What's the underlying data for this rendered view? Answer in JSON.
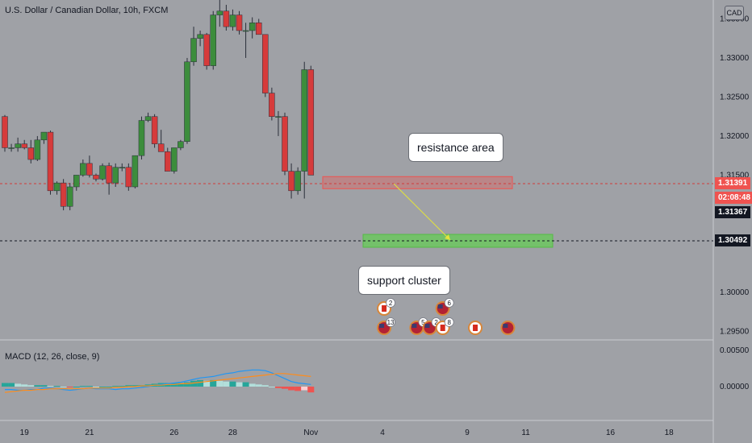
{
  "header": {
    "title": "U.S. Dollar / Canadian Dollar, 10h, FXCM",
    "currency": "CAD"
  },
  "macd": {
    "title": "MACD (12, 26, close, 9)"
  },
  "price_axis": {
    "ticks": [
      {
        "label": "1.33500",
        "v": 1.335
      },
      {
        "label": "1.33000",
        "v": 1.33
      },
      {
        "label": "1.32500",
        "v": 1.325
      },
      {
        "label": "1.32000",
        "v": 1.32
      },
      {
        "label": "1.31500",
        "v": 1.315
      },
      {
        "label": "1.30000",
        "v": 1.3
      },
      {
        "label": "1.29500",
        "v": 1.295
      }
    ],
    "macd_ticks": [
      {
        "label": "0.00500",
        "v": 0.005
      },
      {
        "label": "0.00000",
        "v": 0.0
      }
    ]
  },
  "time_axis": {
    "ticks": [
      {
        "label": "19",
        "i": 3
      },
      {
        "label": "21",
        "i": 13
      },
      {
        "label": "26",
        "i": 26
      },
      {
        "label": "28",
        "i": 35
      },
      {
        "label": "Nov",
        "i": 47
      },
      {
        "label": "4",
        "i": 58
      },
      {
        "label": "9",
        "i": 71
      },
      {
        "label": "11",
        "i": 80
      },
      {
        "label": "16",
        "i": 93
      },
      {
        "label": "18",
        "i": 102
      }
    ]
  },
  "price_tags": {
    "current": {
      "label": "1.31391",
      "color": "#ef5350"
    },
    "countdown": {
      "label": "02:08:48",
      "color": "#ef5350"
    },
    "open": {
      "label": "1.31367",
      "color": "#131722"
    },
    "support": {
      "label": "1.30492",
      "color": "#131722"
    }
  },
  "annotations": {
    "resistance": "resistance area",
    "support": "support cluster"
  },
  "colors": {
    "up": "#26a69a",
    "down": "#ef5350",
    "candle_up": "#3c8d3c",
    "candle_down": "#d63b3b",
    "bg": "#9fa1a6"
  },
  "events": [
    {
      "flag": "ca",
      "count": "2",
      "i": 58,
      "row": 0
    },
    {
      "flag": "us",
      "count": "13",
      "i": 58,
      "row": 1
    },
    {
      "flag": "us",
      "count": "5",
      "i": 63,
      "row": 1
    },
    {
      "flag": "us",
      "count": "2",
      "i": 65,
      "row": 1
    },
    {
      "flag": "us",
      "count": "6",
      "i": 67,
      "row": 0
    },
    {
      "flag": "ca",
      "count": "8",
      "i": 67,
      "row": 1
    },
    {
      "flag": "ca",
      "count": "",
      "i": 72,
      "row": 1
    },
    {
      "flag": "us",
      "count": "",
      "i": 77,
      "row": 1
    }
  ],
  "chart_data": {
    "type": "candlestick",
    "interval": "10h",
    "candles": [
      [
        1.3225,
        1.3227,
        1.318,
        1.3185
      ],
      [
        1.3185,
        1.319,
        1.318,
        1.3185
      ],
      [
        1.3185,
        1.3198,
        1.318,
        1.319
      ],
      [
        1.319,
        1.3195,
        1.3183,
        1.3185
      ],
      [
        1.3185,
        1.3195,
        1.3165,
        1.317
      ],
      [
        1.317,
        1.32,
        1.3168,
        1.3195
      ],
      [
        1.3195,
        1.3205,
        1.319,
        1.3205
      ],
      [
        1.3205,
        1.3207,
        1.3125,
        1.313
      ],
      [
        1.313,
        1.3142,
        1.3125,
        1.314
      ],
      [
        1.314,
        1.3145,
        1.3105,
        1.311
      ],
      [
        1.311,
        1.314,
        1.3105,
        1.3135
      ],
      [
        1.3135,
        1.315,
        1.313,
        1.315
      ],
      [
        1.315,
        1.317,
        1.3148,
        1.3165
      ],
      [
        1.3165,
        1.3175,
        1.3147,
        1.315
      ],
      [
        1.315,
        1.3152,
        1.3142,
        1.3145
      ],
      [
        1.3145,
        1.3165,
        1.3143,
        1.3162
      ],
      [
        1.3162,
        1.3166,
        1.3125,
        1.314
      ],
      [
        1.314,
        1.3165,
        1.3135,
        1.316
      ],
      [
        1.316,
        1.3165,
        1.3155,
        1.316
      ],
      [
        1.316,
        1.3165,
        1.313,
        1.3135
      ],
      [
        1.3135,
        1.3175,
        1.3133,
        1.3175
      ],
      [
        1.3175,
        1.3225,
        1.317,
        1.322
      ],
      [
        1.322,
        1.323,
        1.3218,
        1.3225
      ],
      [
        1.3225,
        1.3228,
        1.3185,
        1.319
      ],
      [
        1.319,
        1.3208,
        1.318,
        1.318
      ],
      [
        1.318,
        1.3185,
        1.3155,
        1.3155
      ],
      [
        1.3155,
        1.3185,
        1.3152,
        1.3185
      ],
      [
        1.3185,
        1.3195,
        1.3182,
        1.3193
      ],
      [
        1.3193,
        1.33,
        1.319,
        1.3295
      ],
      [
        1.3295,
        1.334,
        1.329,
        1.3325
      ],
      [
        1.3325,
        1.3335,
        1.3315,
        1.333
      ],
      [
        1.333,
        1.3332,
        1.3285,
        1.329
      ],
      [
        1.329,
        1.336,
        1.3285,
        1.3355
      ],
      [
        1.3355,
        1.3378,
        1.334,
        1.336
      ],
      [
        1.336,
        1.3368,
        1.3335,
        1.334
      ],
      [
        1.334,
        1.3362,
        1.3335,
        1.3355
      ],
      [
        1.3355,
        1.336,
        1.333,
        1.3335
      ],
      [
        1.3335,
        1.3345,
        1.33,
        1.3335
      ],
      [
        1.3335,
        1.3352,
        1.3325,
        1.3345
      ],
      [
        1.3345,
        1.335,
        1.333,
        1.333
      ],
      [
        1.333,
        1.333,
        1.325,
        1.3255
      ],
      [
        1.3255,
        1.3262,
        1.322,
        1.3225
      ],
      [
        1.3225,
        1.3232,
        1.32,
        1.3225
      ],
      [
        1.3225,
        1.323,
        1.315,
        1.3155
      ],
      [
        1.3155,
        1.3165,
        1.312,
        1.313
      ],
      [
        1.313,
        1.316,
        1.3125,
        1.3155
      ],
      [
        1.3155,
        1.3295,
        1.312,
        1.3285
      ],
      [
        1.3285,
        1.329,
        1.315,
        1.315
      ]
    ],
    "macd_hist": [
      0.0005,
      0.0005,
      0.0004,
      0.0003,
      0.0002,
      0.0002,
      0.0002,
      0.0001,
      0.0001,
      0.0,
      -0.0001,
      0.0,
      0.0001,
      0.0001,
      0.0,
      0.0,
      0.0,
      0.0001,
      0.0001,
      0.0002,
      0.0002,
      0.0002,
      0.0003,
      0.0004,
      0.0005,
      0.0005,
      0.0005,
      0.0005,
      0.0006,
      0.0008,
      0.0009,
      0.0008,
      0.0009,
      0.0008,
      0.0007,
      0.0007,
      0.0006,
      0.0006,
      0.0004,
      0.0003,
      0.0002,
      0.0,
      -0.0002,
      -0.0003,
      -0.0005,
      -0.0006,
      -0.0005,
      -0.0008
    ],
    "macd_line": [
      -0.0004,
      -0.0004,
      -0.0005,
      -0.0005,
      -0.0004,
      -0.0004,
      -0.0002,
      -0.0002,
      -0.0003,
      -0.0004,
      -0.0005,
      -0.0004,
      -0.0003,
      -0.0002,
      -0.0003,
      -0.0003,
      -0.0003,
      -0.0004,
      -0.0003,
      -0.0003,
      -0.0002,
      -0.0001,
      0.0,
      0.0002,
      0.0003,
      0.0004,
      0.0005,
      0.0006,
      0.0008,
      0.001,
      0.0012,
      0.0013,
      0.0014,
      0.0016,
      0.0018,
      0.0019,
      0.0021,
      0.0022,
      0.0023,
      0.0023,
      0.0022,
      0.0019,
      0.0015,
      0.0011,
      0.0007,
      0.0005,
      0.0004,
      0.0003
    ],
    "signal_line": [
      -0.0008,
      -0.0007,
      -0.0006,
      -0.0005,
      -0.0005,
      -0.0004,
      -0.0004,
      -0.0003,
      -0.0003,
      -0.0003,
      -0.0003,
      -0.0003,
      -0.0003,
      -0.0002,
      -0.0002,
      -0.0002,
      -0.0002,
      -0.0001,
      -0.0001,
      0.0,
      0.0,
      0.0001,
      0.0001,
      0.0002,
      0.0002,
      0.0003,
      0.0003,
      0.0004,
      0.0004,
      0.0005,
      0.0006,
      0.0007,
      0.0008,
      0.0009,
      0.001,
      0.0011,
      0.0012,
      0.0013,
      0.0014,
      0.0015,
      0.0016,
      0.0017,
      0.0018,
      0.0018,
      0.0017,
      0.0016,
      0.0015,
      0.0014
    ],
    "levels": {
      "resistance": [
        1.3135,
        1.3145
      ],
      "support": [
        1.3045,
        1.3053
      ],
      "current": 1.31391,
      "support_line": 1.30492
    }
  }
}
